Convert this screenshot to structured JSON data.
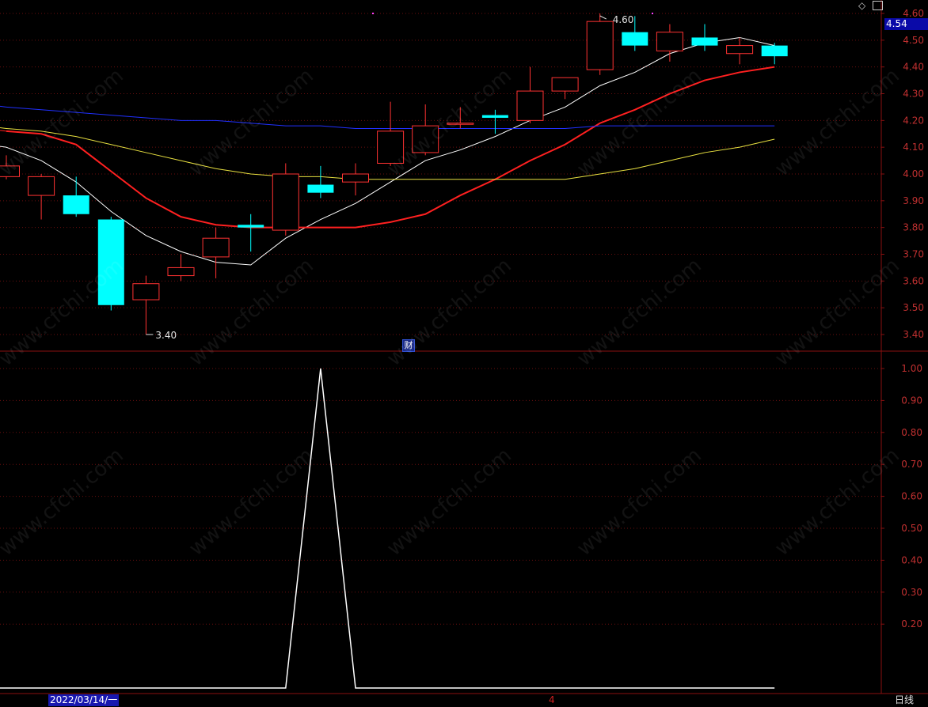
{
  "chart_data": [
    {
      "type": "candlestick",
      "title": "",
      "ylim": [
        3.37,
        4.62
      ],
      "yticks": [
        "4.60",
        "4.50",
        "4.40",
        "4.30",
        "4.20",
        "4.10",
        "4.00",
        "3.90",
        "3.80",
        "3.70",
        "3.60",
        "3.50",
        "3.40"
      ],
      "candles": [
        {
          "open": 3.99,
          "close": 4.03,
          "high": 4.07,
          "low": 3.98
        },
        {
          "open": 3.92,
          "close": 3.99,
          "high": 4.0,
          "low": 3.83
        },
        {
          "open": 3.92,
          "close": 3.85,
          "high": 3.99,
          "low": 3.84
        },
        {
          "open": 3.83,
          "close": 3.51,
          "high": 3.84,
          "low": 3.49
        },
        {
          "open": 3.53,
          "close": 3.59,
          "high": 3.62,
          "low": 3.4
        },
        {
          "open": 3.62,
          "close": 3.65,
          "high": 3.7,
          "low": 3.6
        },
        {
          "open": 3.69,
          "close": 3.76,
          "high": 3.8,
          "low": 3.61
        },
        {
          "open": 3.81,
          "close": 3.8,
          "high": 3.85,
          "low": 3.71
        },
        {
          "open": 3.79,
          "close": 4.0,
          "high": 4.04,
          "low": 3.77
        },
        {
          "open": 3.96,
          "close": 3.93,
          "high": 4.03,
          "low": 3.91
        },
        {
          "open": 3.97,
          "close": 4.0,
          "high": 4.04,
          "low": 3.92
        },
        {
          "open": 4.04,
          "close": 4.16,
          "high": 4.27,
          "low": 4.03
        },
        {
          "open": 4.08,
          "close": 4.18,
          "high": 4.26,
          "low": 4.07
        },
        {
          "open": 4.19,
          "close": 4.19,
          "high": 4.25,
          "low": 4.17
        },
        {
          "open": 4.22,
          "close": 4.21,
          "high": 4.24,
          "low": 4.15
        },
        {
          "open": 4.2,
          "close": 4.31,
          "high": 4.4,
          "low": 4.19
        },
        {
          "open": 4.31,
          "close": 4.36,
          "high": 4.36,
          "low": 4.28
        },
        {
          "open": 4.39,
          "close": 4.57,
          "high": 4.6,
          "low": 4.37
        },
        {
          "open": 4.53,
          "close": 4.48,
          "high": 4.59,
          "low": 4.46
        },
        {
          "open": 4.46,
          "close": 4.53,
          "high": 4.56,
          "low": 4.42
        },
        {
          "open": 4.51,
          "close": 4.48,
          "high": 4.56,
          "low": 4.46
        },
        {
          "open": 4.45,
          "close": 4.48,
          "high": 4.51,
          "low": 4.41
        },
        {
          "open": 4.48,
          "close": 4.44,
          "high": 4.49,
          "low": 4.41
        }
      ],
      "series": [
        {
          "color": "#ffffff",
          "values": [
            4.1,
            4.05,
            3.97,
            3.86,
            3.77,
            3.71,
            3.67,
            3.66,
            3.76,
            3.83,
            3.89,
            3.97,
            4.05,
            4.09,
            4.14,
            4.2,
            4.25,
            4.33,
            4.38,
            4.45,
            4.49,
            4.51,
            4.48
          ]
        },
        {
          "color": "#ff2020",
          "values": [
            4.16,
            4.15,
            4.11,
            4.01,
            3.91,
            3.84,
            3.81,
            3.8,
            3.8,
            3.8,
            3.8,
            3.82,
            3.85,
            3.92,
            3.98,
            4.05,
            4.11,
            4.19,
            4.24,
            4.3,
            4.35,
            4.38,
            4.4
          ]
        },
        {
          "color": "#e8e040",
          "values": [
            4.17,
            4.16,
            4.14,
            4.11,
            4.08,
            4.05,
            4.02,
            4.0,
            3.99,
            3.99,
            3.98,
            3.98,
            3.98,
            3.98,
            3.98,
            3.98,
            3.98,
            4.0,
            4.02,
            4.05,
            4.08,
            4.1,
            4.13
          ]
        },
        {
          "color": "#2030ff",
          "values": [
            4.25,
            4.24,
            4.23,
            4.22,
            4.21,
            4.2,
            4.2,
            4.19,
            4.18,
            4.18,
            4.17,
            4.17,
            4.17,
            4.17,
            4.17,
            4.17,
            4.17,
            4.18,
            4.18,
            4.18,
            4.18,
            4.18,
            4.18
          ]
        }
      ],
      "annotations": {
        "high_label": "4.60",
        "low_label": "3.40"
      },
      "current_price": "4.54"
    },
    {
      "type": "line",
      "title": "",
      "ylim": [
        0.0,
        1.02
      ],
      "yticks": [
        "1.00",
        "0.90",
        "0.80",
        "0.70",
        "0.60",
        "0.50",
        "0.40",
        "0.30",
        "0.20"
      ],
      "series": [
        {
          "color": "#ffffff",
          "values": [
            0,
            0,
            0,
            0,
            0,
            0,
            0,
            0,
            0,
            1,
            0,
            0,
            0,
            0,
            0,
            0,
            0,
            0,
            0,
            0,
            0,
            0,
            0
          ]
        }
      ]
    }
  ],
  "status": {
    "date_range": "2022/03/14/一",
    "page": "4",
    "period": "日线",
    "cai_badge": "财"
  },
  "watermark": "www.cfchi.com"
}
